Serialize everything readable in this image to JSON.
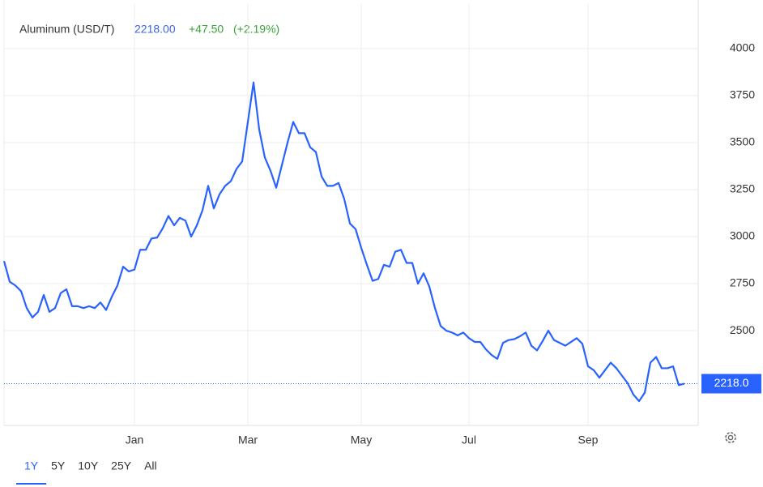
{
  "chart_data": {
    "type": "line",
    "title": "Aluminum (USD/T)",
    "price": "2218.00",
    "change": "+47.50",
    "change_pct": "(+2.19%)",
    "last_value_label": "2218.0",
    "color": "#2962ff",
    "grid": true,
    "ylim": [
      1996,
      4237
    ],
    "yticks": [
      2500,
      2750,
      3000,
      3250,
      3500,
      3750,
      4000
    ],
    "ranges": [
      "1Y",
      "5Y",
      "10Y",
      "25Y",
      "All"
    ],
    "active_range": 0,
    "categories": [
      null,
      null,
      null,
      null,
      null,
      null,
      null,
      null,
      null,
      null,
      null,
      null,
      null,
      null,
      null,
      null,
      null,
      null,
      null,
      null,
      null,
      null,
      null,
      "Jan",
      null,
      null,
      null,
      null,
      null,
      null,
      null,
      null,
      null,
      null,
      null,
      null,
      null,
      null,
      null,
      null,
      null,
      null,
      null,
      "Mar",
      null,
      null,
      null,
      null,
      null,
      null,
      null,
      null,
      null,
      null,
      null,
      null,
      null,
      null,
      null,
      null,
      null,
      null,
      null,
      "May",
      null,
      null,
      null,
      null,
      null,
      null,
      null,
      null,
      null,
      null,
      null,
      null,
      null,
      null,
      null,
      null,
      null,
      null,
      "Jul",
      null,
      null,
      null,
      null,
      null,
      null,
      null,
      null,
      null,
      null,
      null,
      null,
      null,
      null,
      null,
      null,
      null,
      null,
      null,
      null,
      "Sep",
      null,
      null,
      null,
      null,
      null,
      null,
      null,
      null,
      null,
      null,
      null,
      null,
      null,
      null,
      null,
      null,
      null
    ],
    "values": [
      2870,
      2760,
      2740,
      2710,
      2620,
      2570,
      2600,
      2690,
      2600,
      2620,
      2700,
      2720,
      2630,
      2630,
      2620,
      2630,
      2620,
      2650,
      2610,
      2680,
      2740,
      2840,
      2815,
      2825,
      2930,
      2930,
      2990,
      2995,
      3045,
      3110,
      3060,
      3100,
      3085,
      3000,
      3060,
      3140,
      3270,
      3150,
      3225,
      3270,
      3295,
      3360,
      3400,
      3610,
      3820,
      3570,
      3420,
      3350,
      3260,
      3380,
      3500,
      3610,
      3550,
      3550,
      3475,
      3450,
      3320,
      3270,
      3270,
      3285,
      3200,
      3070,
      3040,
      2940,
      2850,
      2765,
      2775,
      2850,
      2840,
      2920,
      2930,
      2860,
      2860,
      2750,
      2805,
      2735,
      2620,
      2525,
      2500,
      2490,
      2475,
      2490,
      2460,
      2440,
      2440,
      2400,
      2370,
      2350,
      2435,
      2450,
      2455,
      2470,
      2490,
      2420,
      2395,
      2445,
      2500,
      2450,
      2435,
      2420,
      2440,
      2460,
      2430,
      2310,
      2290,
      2250,
      2290,
      2330,
      2300,
      2260,
      2220,
      2160,
      2125,
      2170,
      2330,
      2360,
      2300,
      2300,
      2310,
      2210,
      2218
    ]
  }
}
